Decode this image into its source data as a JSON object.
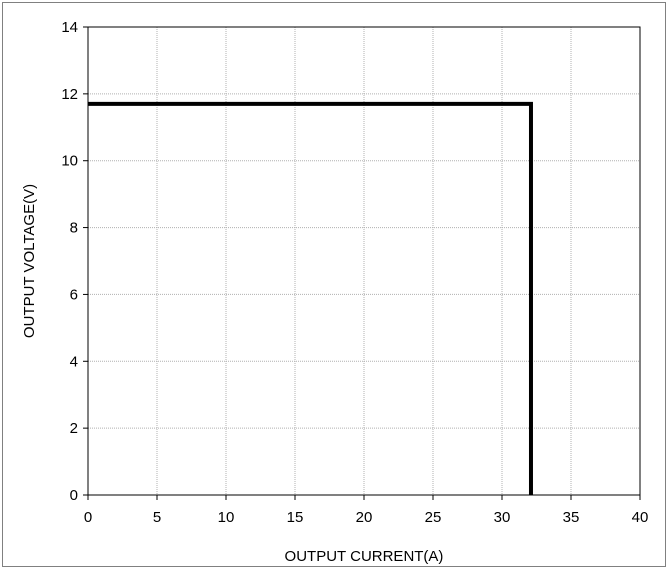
{
  "chart_data": {
    "type": "line",
    "title": "",
    "xlabel": "OUTPUT CURRENT(A)",
    "ylabel": "OUTPUT VOLTAGE(V)",
    "xlim": [
      0,
      40
    ],
    "ylim": [
      0,
      14
    ],
    "xticks": [
      0,
      5,
      10,
      15,
      20,
      25,
      30,
      35,
      40
    ],
    "yticks": [
      0,
      2,
      4,
      6,
      8,
      10,
      12,
      14
    ],
    "grid": true,
    "legend": "none",
    "series": [
      {
        "x": [
          0,
          32.1,
          32.1
        ],
        "y": [
          11.7,
          11.7,
          0
        ]
      }
    ]
  },
  "colors": {
    "line": "#000000",
    "grid": "#b0b0b0",
    "frame": "#808080"
  }
}
